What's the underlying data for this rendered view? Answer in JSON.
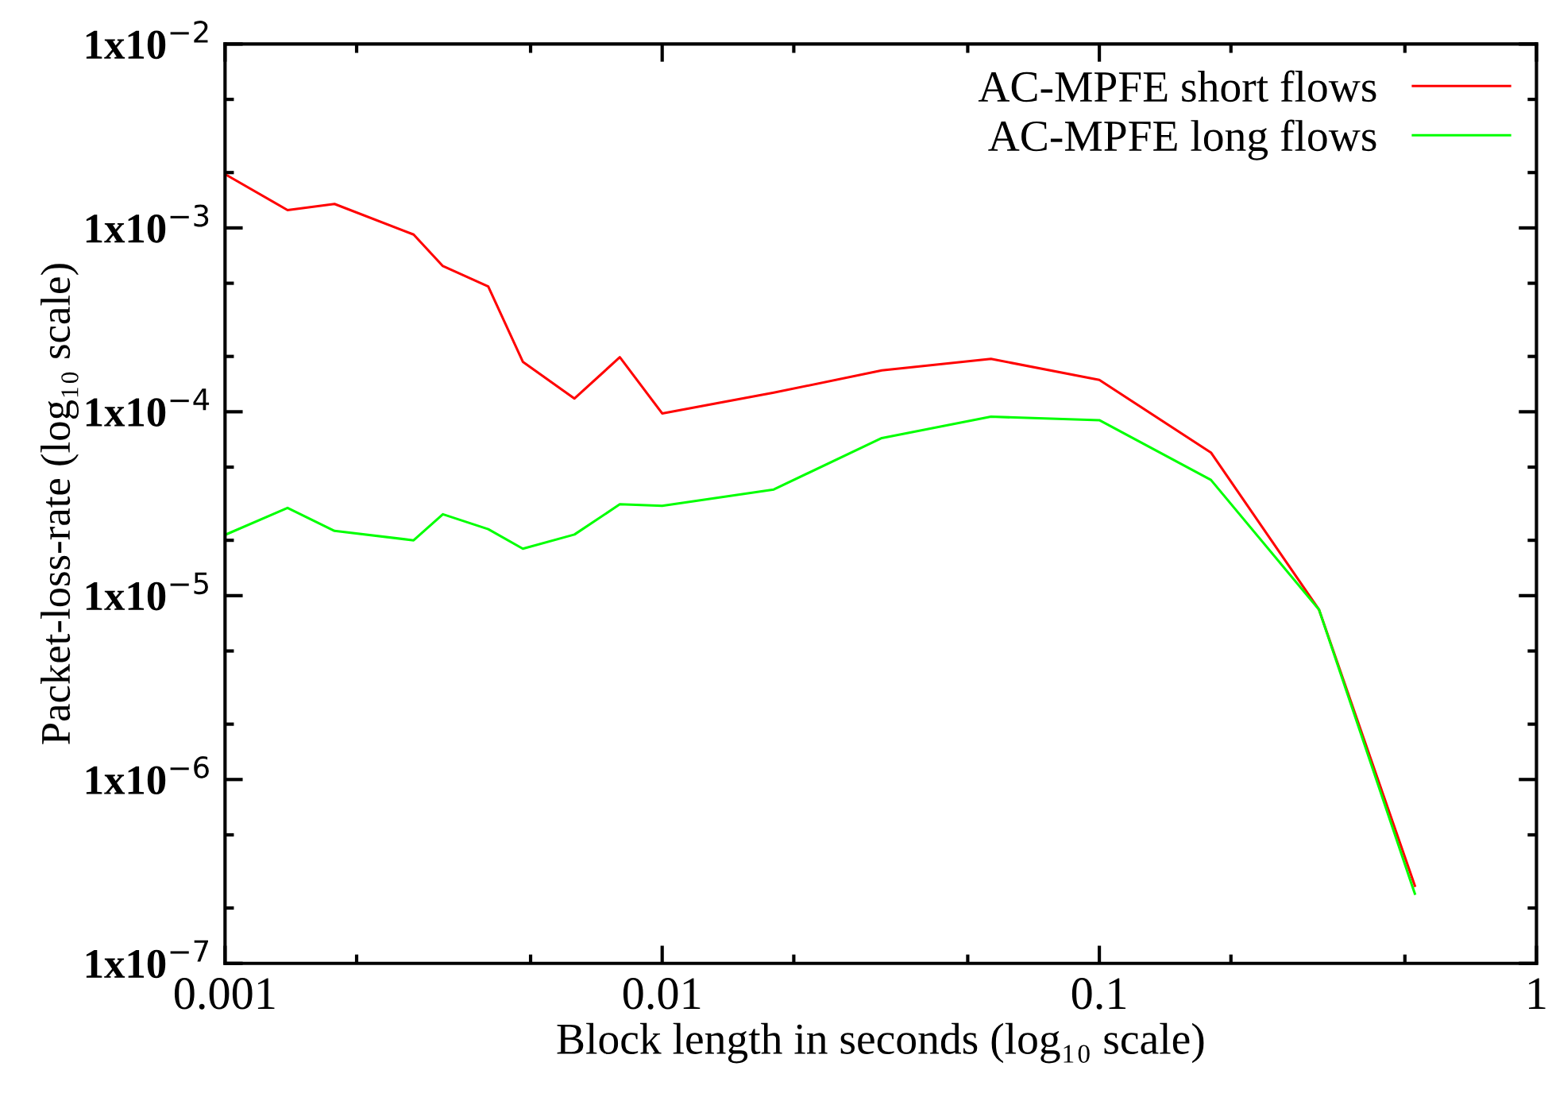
{
  "chart_data": {
    "type": "line",
    "xlabel": "Block length in seconds (log₁₀ scale)",
    "ylabel": "Packet-loss-rate (log₁₀ scale)",
    "log": "xy",
    "grid": false,
    "legend": "top right",
    "line_style": "solid",
    "marker": "none",
    "xlim": [
      0.001,
      1
    ],
    "xticks": [
      0.001,
      0.01,
      0.1,
      1
    ],
    "ylim": [
      1e-07,
      0.01
    ],
    "yticks": [
      {
        "value": 1e-07,
        "label": "1x10$^{−7}$"
      },
      {
        "value": 1e-06,
        "label": "1x10$^{−6}$"
      },
      {
        "value": 1e-05,
        "label": "1x10$^{−5}$"
      },
      {
        "value": 0.0001,
        "label": "1x10$^{−4}$"
      },
      {
        "value": 0.001,
        "label": "1x10$^{−3}$"
      },
      {
        "value": 0.01,
        "label": "1x10$^{−2}$"
      }
    ],
    "series": [
      {
        "name": "AC-MPFE short flows",
        "color": "#ff0000",
        "x": [
          0.001,
          0.00139,
          0.00178,
          0.0027,
          0.00315,
          0.004,
          0.0048,
          0.0063,
          0.008,
          0.01,
          0.018,
          0.0318,
          0.0565,
          0.1,
          0.18,
          0.318,
          0.527
        ],
        "values": [
          0.00196,
          0.00125,
          0.00135,
          0.00092,
          0.00062,
          0.00048,
          0.000187,
          0.000118,
          0.000198,
          9.8e-05,
          0.000127,
          0.000168,
          0.000194,
          0.000149,
          6e-05,
          8.4e-06,
          2.64e-07
        ]
      },
      {
        "name": "AC-MPFE long flows",
        "color": "#00ff00",
        "x": [
          0.001,
          0.00139,
          0.00178,
          0.0027,
          0.00315,
          0.004,
          0.0048,
          0.0063,
          0.008,
          0.01,
          0.018,
          0.0318,
          0.0565,
          0.1,
          0.18,
          0.318,
          0.527
        ],
        "values": [
          2.14e-05,
          3e-05,
          2.25e-05,
          2e-05,
          2.77e-05,
          2.3e-05,
          1.8e-05,
          2.15e-05,
          3.14e-05,
          3.08e-05,
          3.78e-05,
          7.2e-05,
          9.4e-05,
          9e-05,
          4.26e-05,
          8.4e-06,
          2.39e-07
        ]
      }
    ]
  }
}
